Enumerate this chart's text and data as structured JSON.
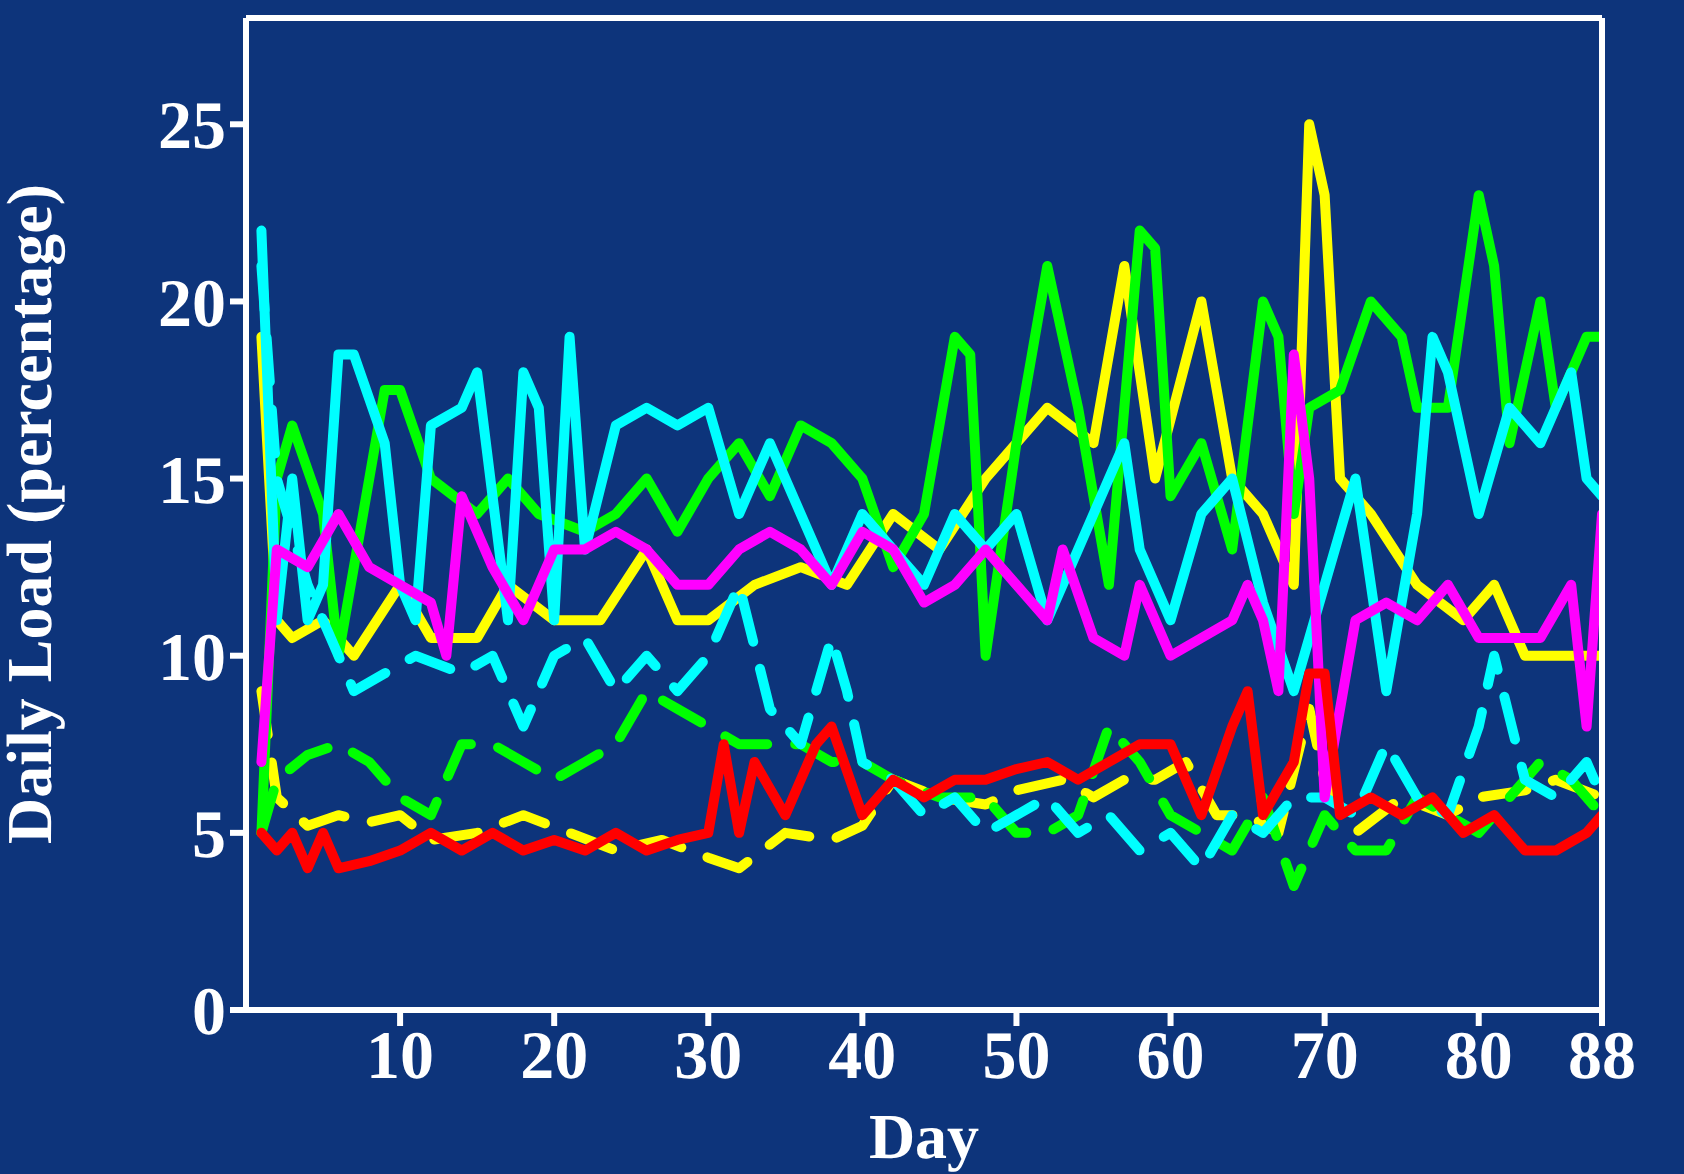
{
  "chart_data": {
    "type": "line",
    "xlabel": "Day",
    "ylabel": "Daily Load (percentage)",
    "xlim": [
      0,
      88
    ],
    "ylim": [
      0,
      28
    ],
    "xticks": [
      10,
      20,
      30,
      40,
      50,
      60,
      70,
      80,
      88
    ],
    "yticks": [
      0,
      5,
      10,
      15,
      20,
      25
    ],
    "grid": false,
    "legend": false,
    "series": [
      {
        "color": "#ffff00",
        "line_style": "solid",
        "x": [
          1,
          2,
          3,
          5,
          7,
          10,
          12,
          15,
          17,
          20,
          23,
          26,
          28,
          30,
          33,
          36,
          39,
          42,
          45,
          48,
          50,
          52,
          55,
          57,
          59,
          62,
          64,
          66,
          68,
          69,
          70,
          71,
          73,
          76,
          79,
          81,
          83,
          85,
          88
        ],
        "values": [
          19,
          11,
          10.5,
          11,
          10,
          12,
          10.5,
          10.5,
          12,
          11,
          11,
          13,
          11,
          11,
          12,
          12.5,
          12,
          14,
          13,
          15,
          16,
          17,
          16,
          21,
          15,
          20,
          15,
          14,
          12,
          25,
          23,
          15,
          14,
          12,
          11,
          12,
          10,
          10,
          10
        ]
      },
      {
        "color": "#ffff00",
        "line_style": "dashed",
        "x": [
          1,
          2,
          4,
          6,
          8,
          10,
          12,
          15,
          18,
          21,
          24,
          27,
          30,
          32,
          35,
          38,
          40,
          42,
          45,
          48,
          50,
          53,
          55,
          57,
          59,
          61,
          63,
          65,
          67,
          69,
          70,
          72,
          75,
          78,
          80,
          83,
          85,
          88
        ],
        "values": [
          9,
          6,
          5.2,
          5.5,
          5.3,
          5.5,
          4.8,
          5,
          5.5,
          5,
          4.5,
          4.8,
          4.3,
          4,
          5,
          4.8,
          5.2,
          6.5,
          6,
          5.8,
          6.2,
          6.5,
          6,
          6.5,
          6.5,
          7,
          5.5,
          5.5,
          5,
          8.5,
          6.5,
          5,
          6,
          5.5,
          6,
          6.2,
          6.5,
          6
        ]
      },
      {
        "color": "#00ff00",
        "line_style": "solid",
        "x": [
          1,
          2,
          3,
          5,
          6,
          8,
          9,
          10,
          12,
          15,
          17,
          19,
          22,
          24,
          26,
          28,
          30,
          32,
          34,
          36,
          38,
          40,
          42,
          44,
          46,
          47,
          48,
          50,
          52,
          54,
          56,
          58,
          59,
          60,
          62,
          64,
          66,
          67,
          68,
          69,
          71,
          73,
          75,
          76,
          78,
          80,
          81,
          82,
          84,
          85,
          87,
          88
        ],
        "values": [
          5,
          15,
          16.5,
          14,
          10,
          15,
          17.5,
          17.5,
          15,
          14,
          15,
          14,
          13.5,
          14,
          15,
          13.5,
          15,
          16,
          14.5,
          16.5,
          16,
          15,
          12.5,
          14,
          19,
          18.5,
          10,
          16,
          21,
          17,
          12,
          22,
          21.5,
          14.5,
          16,
          13,
          20,
          19,
          14,
          17,
          17.5,
          20,
          19,
          17,
          17,
          23,
          21,
          16,
          20,
          17,
          19,
          19
        ]
      },
      {
        "color": "#00ff00",
        "line_style": "dashed",
        "x": [
          1,
          2,
          4,
          6,
          8,
          10,
          12,
          14,
          16,
          18,
          20,
          22,
          24,
          26,
          28,
          30,
          32,
          34,
          36,
          38,
          40,
          42,
          45,
          48,
          50,
          52,
          54,
          56,
          58,
          60,
          62,
          64,
          66,
          68,
          70,
          72,
          74,
          76,
          78,
          80,
          82,
          84,
          86,
          88
        ],
        "values": [
          5,
          6.5,
          7.2,
          7.5,
          7,
          6,
          5.5,
          7.5,
          7.5,
          7,
          6.5,
          7,
          7.5,
          9,
          8.5,
          8,
          7.5,
          7.5,
          7.5,
          7,
          7,
          6.5,
          6,
          6,
          5,
          5,
          5.5,
          8,
          7,
          5.5,
          5,
          4.5,
          6,
          3.5,
          5.5,
          4.5,
          4.5,
          6,
          5.5,
          5,
          6,
          7,
          6.5,
          5.5
        ]
      },
      {
        "color": "#00ffff",
        "line_style": "solid",
        "x": [
          1,
          2,
          3,
          4,
          5,
          6,
          7,
          9,
          10,
          11,
          12,
          14,
          15,
          17,
          18,
          19,
          20,
          21,
          22,
          24,
          26,
          28,
          30,
          32,
          34,
          36,
          38,
          40,
          42,
          44,
          46,
          48,
          50,
          52,
          54,
          56,
          57,
          58,
          60,
          62,
          64,
          66,
          68,
          70,
          72,
          74,
          76,
          77,
          78,
          80,
          82,
          84,
          86,
          87,
          88
        ],
        "values": [
          22,
          11,
          15,
          11,
          12,
          18.5,
          18.5,
          16,
          12,
          11,
          16.5,
          17,
          18,
          11,
          18,
          17,
          11,
          19,
          13,
          16.5,
          17,
          16.5,
          17,
          14,
          16,
          14,
          12,
          14,
          13,
          12,
          14,
          13,
          14,
          11,
          13,
          15,
          16,
          13,
          11,
          14,
          15,
          11.5,
          9,
          12,
          15,
          9,
          14,
          19,
          18,
          14,
          17,
          16,
          18,
          15,
          14.5
        ]
      },
      {
        "color": "#00ffff",
        "line_style": "dashed",
        "x": [
          1,
          2,
          4,
          6,
          7,
          9,
          11,
          14,
          16,
          18,
          20,
          22,
          24,
          26,
          28,
          30,
          32,
          34,
          36,
          38,
          39,
          40,
          42,
          44,
          46,
          48,
          50,
          52,
          54,
          56,
          58,
          60,
          62,
          64,
          66,
          68,
          70,
          72,
          74,
          76,
          78,
          80,
          81,
          83,
          85,
          87,
          88
        ],
        "values": [
          21,
          15,
          12,
          10,
          9,
          9.5,
          10,
          9.5,
          10,
          8,
          10,
          10.5,
          9,
          10,
          9,
          10,
          12,
          8.5,
          7.5,
          10.5,
          9,
          7,
          6.5,
          5.5,
          6,
          5,
          5.5,
          6,
          5,
          5.5,
          4.5,
          5,
          4,
          5.5,
          5,
          6,
          6,
          5.5,
          7.5,
          6,
          5.5,
          8,
          10,
          6.5,
          6,
          7,
          6
        ]
      },
      {
        "color": "#ff00ff",
        "line_style": "solid",
        "x": [
          1,
          2,
          4,
          6,
          8,
          10,
          12,
          13,
          14,
          16,
          18,
          20,
          22,
          24,
          26,
          28,
          30,
          32,
          34,
          36,
          38,
          40,
          42,
          44,
          46,
          48,
          50,
          52,
          53,
          55,
          57,
          58,
          60,
          62,
          64,
          65,
          66,
          67,
          68,
          69,
          70,
          72,
          74,
          76,
          78,
          80,
          82,
          84,
          86,
          87,
          88
        ],
        "values": [
          7,
          13,
          12.5,
          14,
          12.5,
          12,
          11.5,
          10,
          14.5,
          12.5,
          11,
          13,
          13,
          13.5,
          13,
          12,
          12,
          13,
          13.5,
          13,
          12,
          13.5,
          13,
          11.5,
          12,
          13,
          12,
          11,
          13,
          10.5,
          10,
          12,
          10,
          10.5,
          11,
          12,
          11,
          9,
          18.5,
          15,
          6,
          11,
          11.5,
          11,
          12,
          10.5,
          10.5,
          10.5,
          12,
          8,
          14
        ]
      },
      {
        "color": "#ff0000",
        "line_style": "solid",
        "x": [
          1,
          2,
          3,
          4,
          5,
          6,
          8,
          10,
          12,
          14,
          16,
          18,
          20,
          22,
          24,
          26,
          28,
          30,
          31,
          32,
          33,
          35,
          37,
          38,
          40,
          42,
          44,
          46,
          48,
          50,
          52,
          54,
          56,
          58,
          60,
          62,
          64,
          65,
          66,
          68,
          69,
          70,
          71,
          73,
          75,
          77,
          79,
          81,
          83,
          85,
          87,
          88
        ],
        "values": [
          5,
          4.5,
          5,
          4,
          5,
          4,
          4.2,
          4.5,
          5,
          4.5,
          5,
          4.5,
          4.8,
          4.5,
          5,
          4.5,
          4.8,
          5,
          7.5,
          5,
          7,
          5.5,
          7.5,
          8,
          5.5,
          6.5,
          6,
          6.5,
          6.5,
          6.8,
          7,
          6.5,
          7,
          7.5,
          7.5,
          5.5,
          8,
          9,
          5.5,
          7,
          9.5,
          9.5,
          5.5,
          6,
          5.5,
          6,
          5,
          5.5,
          4.5,
          4.5,
          5,
          5.5
        ]
      }
    ]
  }
}
